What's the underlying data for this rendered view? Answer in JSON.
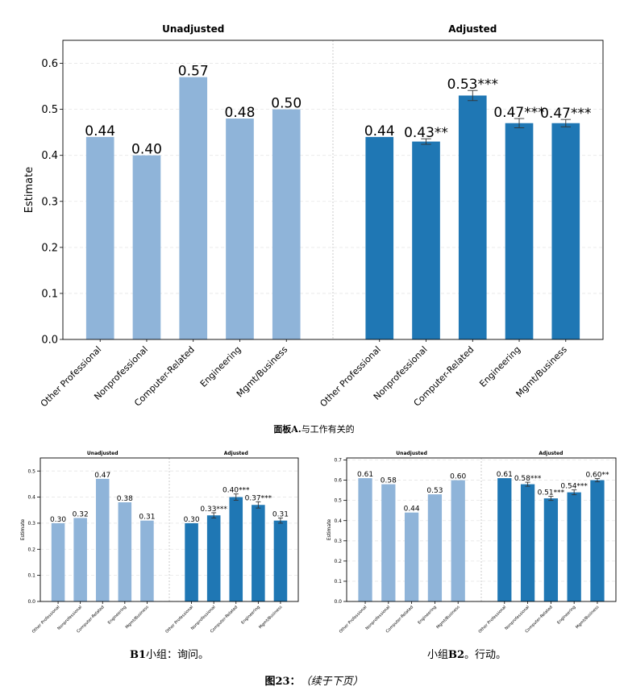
{
  "captions": {
    "panel_a_bold": "面板A.",
    "panel_a_text": "与工作有关的",
    "panel_b1_bold": "B1",
    "panel_b1_text": "小组：询问。",
    "panel_b2_pre": "小组",
    "panel_b2_bold": "B2",
    "panel_b2_text": "。行动。",
    "figure_bold": "图23：",
    "figure_italic": "（续于下页）"
  },
  "colors": {
    "unadjusted_bar": "#8fb4d9",
    "adjusted_bar": "#1f77b4",
    "grid": "#e6e6e6",
    "divider": "#bfbfbf"
  },
  "chart_data": [
    {
      "id": "panel-a",
      "type": "bar",
      "categories": [
        "Other Professional",
        "Nonprofessional",
        "Computer-Related",
        "Engineering",
        "Mgmt/Business"
      ],
      "ylabel": "Estimate",
      "ylim": [
        0,
        0.65
      ],
      "yticks": [
        "0.0",
        "0.1",
        "0.2",
        "0.3",
        "0.4",
        "0.5",
        "0.6"
      ],
      "grid": true,
      "series": [
        {
          "name": "Unadjusted",
          "values": [
            0.44,
            0.4,
            0.57,
            0.48,
            0.5
          ],
          "labels": [
            "0.44",
            "0.40",
            "0.57",
            "0.48",
            "0.50"
          ]
        },
        {
          "name": "Adjusted",
          "values": [
            0.44,
            0.43,
            0.53,
            0.47,
            0.47
          ],
          "labels": [
            "0.44",
            "0.43**",
            "0.53***",
            "0.47***",
            "0.47***"
          ],
          "errors": [
            0,
            0.006,
            0.011,
            0.01,
            0.008
          ]
        }
      ]
    },
    {
      "id": "panel-b1",
      "type": "bar",
      "categories": [
        "Other Professional",
        "Nonprofessional",
        "Computer-Related",
        "Engineering",
        "Mgmt/Business"
      ],
      "ylabel": "Estimate",
      "ylim": [
        0,
        0.55
      ],
      "yticks": [
        "0.0",
        "0.1",
        "0.2",
        "0.3",
        "0.4",
        "0.5"
      ],
      "grid": true,
      "series": [
        {
          "name": "Unadjusted",
          "values": [
            0.3,
            0.32,
            0.47,
            0.38,
            0.31
          ],
          "labels": [
            "0.30",
            "0.32",
            "0.47",
            "0.38",
            "0.31"
          ]
        },
        {
          "name": "Adjusted",
          "values": [
            0.3,
            0.33,
            0.4,
            0.37,
            0.31
          ],
          "labels": [
            "0.30",
            "0.33***",
            "0.40***",
            "0.37***",
            "0.31"
          ],
          "errors": [
            0,
            0.01,
            0.012,
            0.012,
            0.01
          ]
        }
      ]
    },
    {
      "id": "panel-b2",
      "type": "bar",
      "categories": [
        "Other Professional",
        "Nonprofessional",
        "Computer-Related",
        "Engineering",
        "Mgmt/Business"
      ],
      "ylabel": "Estimate",
      "ylim": [
        0,
        0.71
      ],
      "yticks": [
        "0.0",
        "0.1",
        "0.2",
        "0.3",
        "0.4",
        "0.5",
        "0.6",
        "0.7"
      ],
      "grid": true,
      "series": [
        {
          "name": "Unadjusted",
          "values": [
            0.61,
            0.58,
            0.44,
            0.53,
            0.6
          ],
          "labels": [
            "0.61",
            "0.58",
            "0.44",
            "0.53",
            "0.60"
          ]
        },
        {
          "name": "Adjusted",
          "values": [
            0.61,
            0.58,
            0.51,
            0.54,
            0.6
          ],
          "labels": [
            "0.61",
            "0.58***",
            "0.51***",
            "0.54***",
            "0.60**"
          ],
          "errors": [
            0,
            0.01,
            0.01,
            0.012,
            0.008
          ]
        }
      ]
    }
  ]
}
